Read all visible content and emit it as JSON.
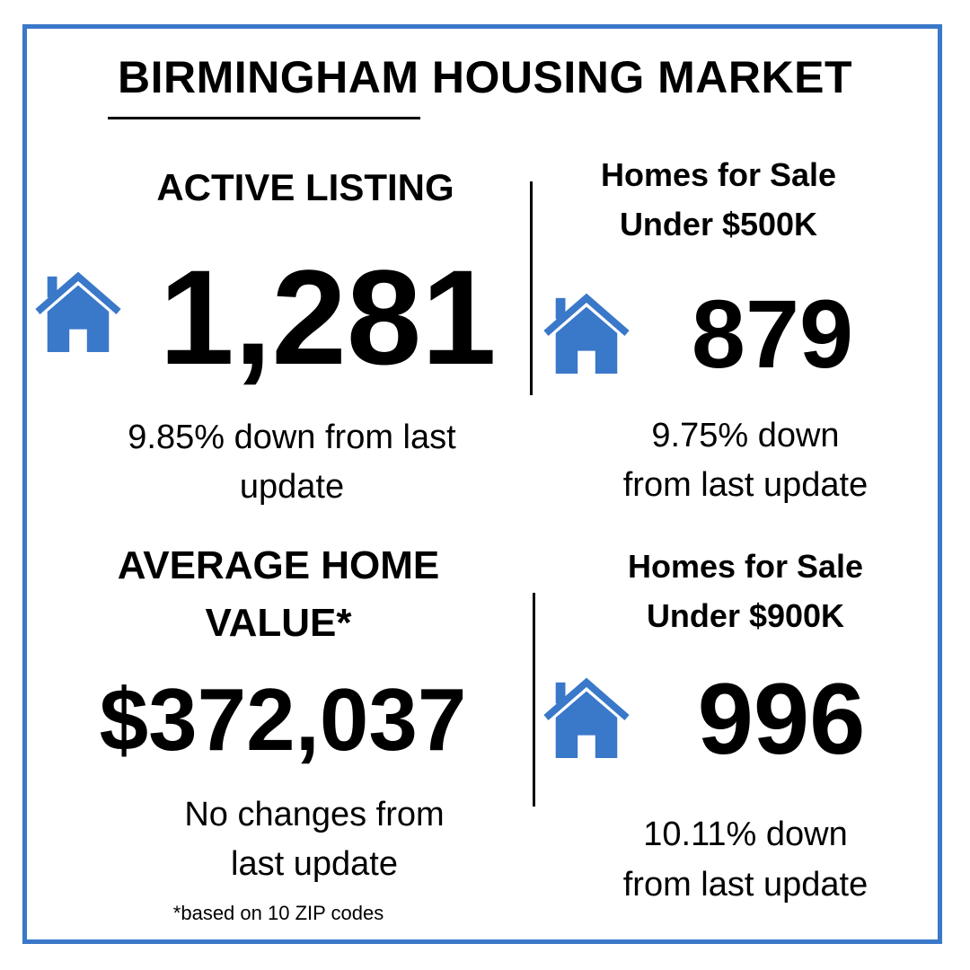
{
  "title": "BIRMINGHAM HOUSING MARKET",
  "colors": {
    "accent": "#3a78c9",
    "text": "#000000",
    "background": "#ffffff"
  },
  "icons": {
    "house": "house-icon"
  },
  "active_listing": {
    "heading": "ACTIVE LISTING",
    "value": "1,281",
    "change_line1": "9.85% down from last",
    "change_line2": "update"
  },
  "under_500k": {
    "heading_line1": "Homes for Sale",
    "heading_line2": "Under $500K",
    "value": "879",
    "change_line1": "9.75% down",
    "change_line2": "from last update"
  },
  "average_home_value": {
    "heading_line1": "AVERAGE HOME",
    "heading_line2": "VALUE*",
    "value": "$372,037",
    "change_line1": "No changes from",
    "change_line2": "last update",
    "footnote": "*based on 10 ZIP codes"
  },
  "under_900k": {
    "heading_line1": "Homes for Sale",
    "heading_line2": "Under $900K",
    "value": "996",
    "change_line1": "10.11% down",
    "change_line2": "from last update"
  }
}
